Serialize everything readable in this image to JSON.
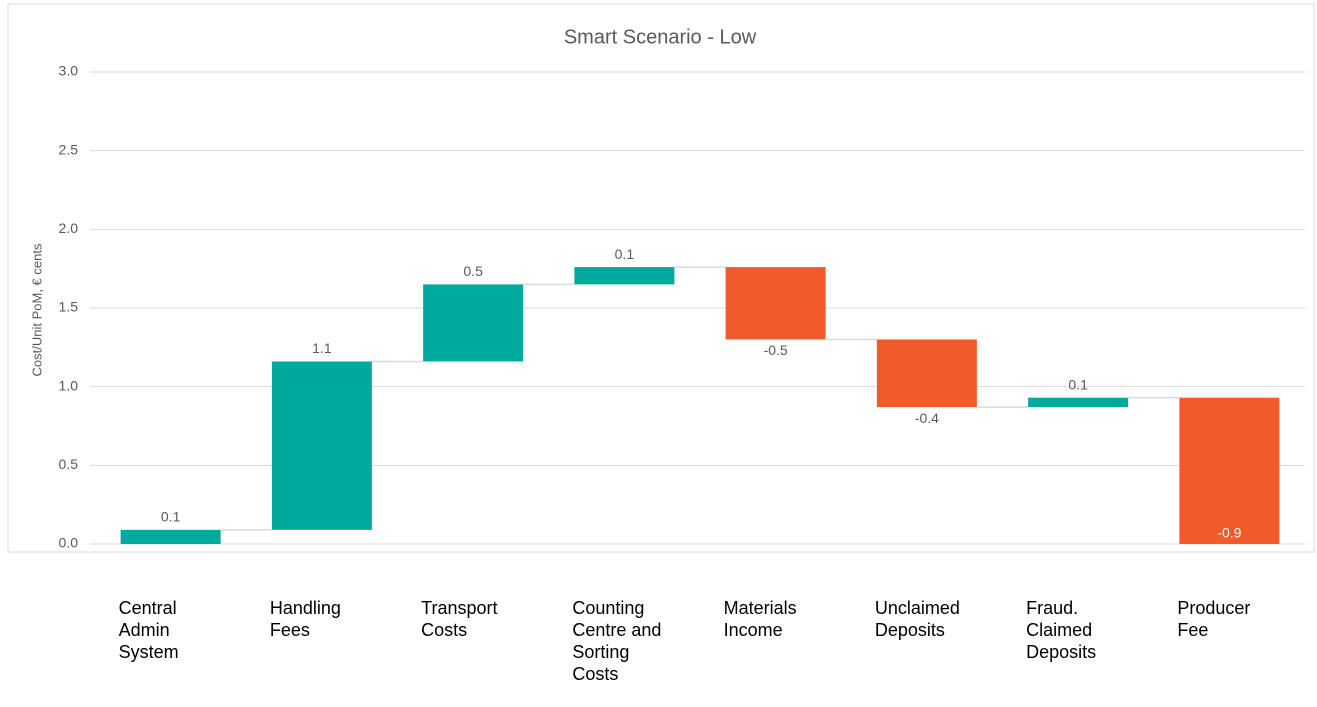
{
  "chart_data": {
    "type": "waterfall",
    "title": "Smart Scenario - Low",
    "y_label": "Cost/Unit PoM, € cents",
    "categories": [
      "Central Admin System",
      "Handling Fees",
      "Transport Costs",
      "Counting Centre and Sorting Costs",
      "Materials Income",
      "Unclaimed Deposits",
      "Fraud. Claimed Deposits",
      "Producer Fee"
    ],
    "values": [
      0.09,
      1.07,
      0.49,
      0.11,
      -0.46,
      -0.43,
      0.06,
      -0.93
    ],
    "value_labels": [
      "0.1",
      "1.1",
      "0.5",
      "0.1",
      "-0.5",
      "-0.4",
      "0.1",
      "-0.9"
    ],
    "increase_color": "#00a99d",
    "decrease_color": "#f15a29",
    "ylim": [
      0,
      3
    ],
    "yticks": [
      {
        "value": 0,
        "label": "0.0"
      },
      {
        "value": 0.5,
        "label": "0.5"
      },
      {
        "value": 1,
        "label": "1.0"
      },
      {
        "value": 1.5,
        "label": "1.5"
      },
      {
        "value": 2,
        "label": "2.0"
      },
      {
        "value": 2.5,
        "label": "2.5"
      },
      {
        "value": 3,
        "label": "3.0"
      }
    ],
    "grid": true
  }
}
